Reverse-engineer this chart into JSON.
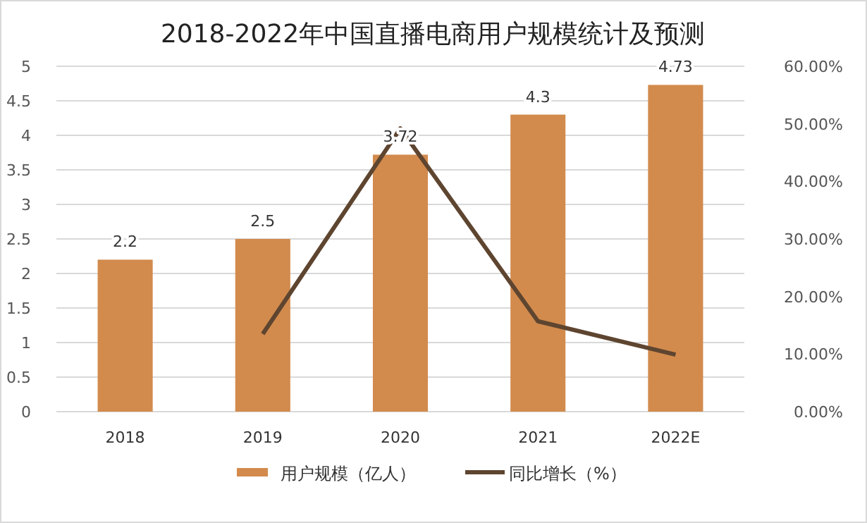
{
  "chart_data": {
    "type": "bar",
    "title": "2018-2022年中国直播电商用户规模统计及预测",
    "categories": [
      "2018",
      "2019",
      "2020",
      "2021",
      "2022E"
    ],
    "series": [
      {
        "name": "用户规模（亿人）",
        "color": "#d28b4d",
        "values": [
          2.2,
          2.5,
          3.72,
          4.3,
          4.73
        ],
        "data_labels": true
      },
      {
        "name": "同比增长（%）",
        "type": "line",
        "axis": "y2",
        "color": "#5e4530",
        "values": [
          null,
          13.5,
          49.2,
          15.7,
          9.9
        ]
      }
    ],
    "ylim": [
      0,
      5
    ],
    "yticks": [
      0,
      0.5,
      1,
      1.5,
      2,
      2.5,
      3,
      3.5,
      4,
      4.5,
      5
    ],
    "y2lim": [
      0,
      60
    ],
    "y2ticks": [
      {
        "value": 0,
        "label": "0.00%"
      },
      {
        "value": 10,
        "label": "10.00%"
      },
      {
        "value": 20,
        "label": "20.00%"
      },
      {
        "value": 30,
        "label": "30.00%"
      },
      {
        "value": 40,
        "label": "40.00%"
      },
      {
        "value": 50,
        "label": "50.00%"
      },
      {
        "value": 60,
        "label": "60.00%"
      }
    ],
    "grid": "y",
    "legend": "bottom",
    "marker": "none",
    "line_style": "solid"
  }
}
